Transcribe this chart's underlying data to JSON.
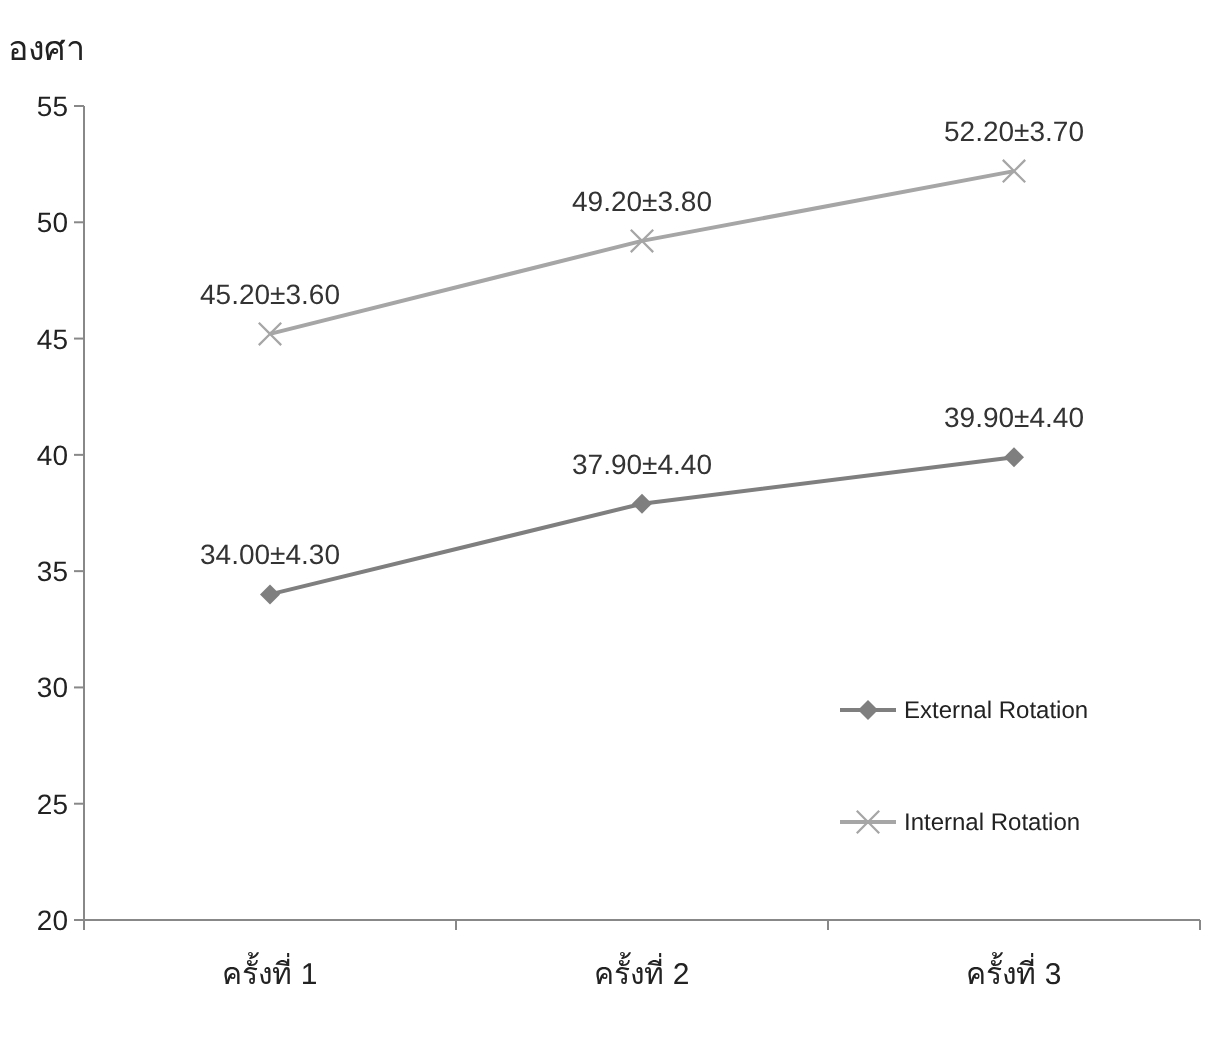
{
  "chart_data": {
    "type": "line",
    "ylabel": "องศา",
    "categories": [
      "ครั้งที่ 1",
      "ครั้งที่ 2",
      "ครั้งที่ 3"
    ],
    "ylim": [
      20,
      55
    ],
    "yticks": [
      20,
      25,
      30,
      35,
      40,
      45,
      50,
      55
    ],
    "legend": "right",
    "series": [
      {
        "name": "External Rotation",
        "color": "#7f7f7f",
        "marker": "diamond",
        "values": [
          34.0,
          37.9,
          39.9
        ],
        "value_labels": [
          "34.00±4.30",
          "37.90±4.40",
          "39.90±4.40"
        ]
      },
      {
        "name": "Internal Rotation",
        "color": "#a6a6a6",
        "marker": "cross",
        "values": [
          45.2,
          49.2,
          52.2
        ],
        "value_labels": [
          "45.20±3.60",
          "49.20±3.80",
          "52.20±3.70"
        ]
      }
    ]
  }
}
